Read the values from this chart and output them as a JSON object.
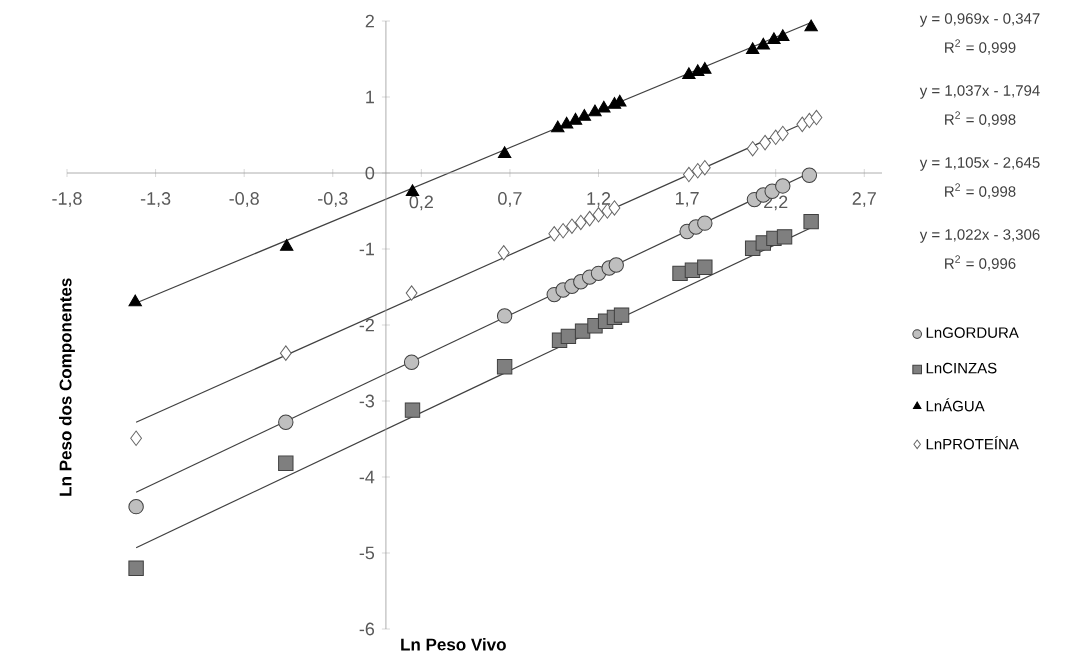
{
  "chart_data": {
    "type": "scatter",
    "xlabel": "Ln Peso Vivo",
    "ylabel": "Ln Peso dos Componentes",
    "xlim": [
      -1.8,
      2.8
    ],
    "ylim": [
      -6,
      2
    ],
    "xticks": [
      {
        "value": -1.8,
        "label": "-1,8"
      },
      {
        "value": -1.3,
        "label": "-1,3"
      },
      {
        "value": -0.8,
        "label": "-0,8"
      },
      {
        "value": -0.3,
        "label": "-0,3"
      },
      {
        "value": 0.2,
        "label": "0,2"
      },
      {
        "value": 0.7,
        "label": "0,7"
      },
      {
        "value": 1.2,
        "label": "1,2"
      },
      {
        "value": 1.7,
        "label": "1,7"
      },
      {
        "value": 2.2,
        "label": "2,2"
      },
      {
        "value": 2.7,
        "label": "2,7"
      }
    ],
    "yticks": [
      -6,
      -5,
      -4,
      -3,
      -2,
      -1,
      0,
      1,
      2
    ],
    "grid": false,
    "legend": "right",
    "series": [
      {
        "name": "LnGORDURA",
        "type": "scatter",
        "marker": "circle",
        "color": "#bfbfbf",
        "x": [
          -1.41,
          -0.565,
          0.145,
          0.67,
          0.95,
          1.0,
          1.05,
          1.1,
          1.15,
          1.2,
          1.26,
          1.3,
          1.7,
          1.75,
          1.8,
          2.08,
          2.13,
          2.18,
          2.24,
          2.39
        ],
        "values": [
          -4.39,
          -3.28,
          -2.49,
          -1.88,
          -1.6,
          -1.54,
          -1.49,
          -1.43,
          -1.37,
          -1.32,
          -1.25,
          -1.21,
          -0.77,
          -0.71,
          -0.66,
          -0.35,
          -0.29,
          -0.24,
          -0.17,
          -0.03
        ]
      },
      {
        "name": "LnCINZAS",
        "type": "scatter",
        "marker": "square",
        "color": "#7f7f7f",
        "x": [
          -1.41,
          -0.565,
          0.15,
          0.67,
          0.98,
          1.03,
          1.11,
          1.18,
          1.24,
          1.29,
          1.33,
          1.66,
          1.73,
          1.8,
          2.07,
          2.13,
          2.19,
          2.25,
          2.4
        ],
        "values": [
          -5.2,
          -3.82,
          -3.12,
          -2.55,
          -2.2,
          -2.15,
          -2.08,
          -2.01,
          -1.95,
          -1.9,
          -1.87,
          -1.32,
          -1.28,
          -1.24,
          -0.99,
          -0.92,
          -0.86,
          -0.84,
          -0.64
        ]
      },
      {
        "name": "LnÁGUA",
        "type": "scatter",
        "marker": "triangle",
        "color": "#000000",
        "x": [
          -1.415,
          -0.56,
          0.15,
          0.67,
          0.97,
          1.02,
          1.07,
          1.12,
          1.18,
          1.23,
          1.29,
          1.32,
          1.71,
          1.76,
          1.8,
          2.07,
          2.13,
          2.19,
          2.24,
          2.4
        ],
        "values": [
          -1.7,
          -0.97,
          -0.25,
          0.25,
          0.59,
          0.64,
          0.69,
          0.74,
          0.8,
          0.85,
          0.9,
          0.93,
          1.29,
          1.33,
          1.36,
          1.62,
          1.68,
          1.75,
          1.79,
          1.92
        ]
      },
      {
        "name": "LnPROTEÍNA",
        "type": "scatter",
        "marker": "diamond",
        "color": "#ffffff",
        "x": [
          -1.41,
          -0.565,
          0.145,
          0.665,
          0.95,
          1.0,
          1.05,
          1.1,
          1.15,
          1.2,
          1.25,
          1.29,
          1.71,
          1.76,
          1.8,
          2.07,
          2.14,
          2.2,
          2.24,
          2.35,
          2.39,
          2.43
        ],
        "values": [
          -3.49,
          -2.37,
          -1.58,
          -1.05,
          -0.8,
          -0.76,
          -0.7,
          -0.65,
          -0.6,
          -0.55,
          -0.5,
          -0.46,
          -0.02,
          0.03,
          0.07,
          0.32,
          0.4,
          0.47,
          0.52,
          0.64,
          0.69,
          0.73
        ]
      },
      {
        "type": "line",
        "marker": "none",
        "color": "#404040",
        "x": [
          -1.41,
          2.4
        ],
        "values": [
          -1.71,
          1.98
        ]
      },
      {
        "type": "line",
        "marker": "none",
        "color": "#404040",
        "x": [
          -1.41,
          2.43
        ],
        "values": [
          -3.28,
          0.73
        ]
      },
      {
        "type": "line",
        "marker": "none",
        "color": "#404040",
        "x": [
          -1.41,
          2.39
        ],
        "values": [
          -4.2,
          0.0
        ]
      },
      {
        "type": "line",
        "marker": "none",
        "color": "#404040",
        "x": [
          -1.41,
          2.4
        ],
        "values": [
          -4.93,
          -0.72
        ]
      }
    ],
    "annotations": [
      "y = 0,969x - 0,347",
      "R$^{2}$ = 0,999",
      "y = 1,037x - 1,794",
      "R$^{2}$ = 0,998",
      "y = 1,105x - 2,645",
      "R$^{2}$ = 0,998",
      "y = 1,022x - 3,306",
      "R$^{2}$ = 0,996"
    ]
  }
}
